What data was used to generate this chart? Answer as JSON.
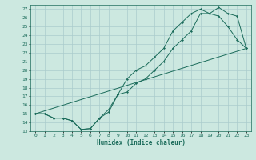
{
  "xlabel": "Humidex (Indice chaleur)",
  "background_color": "#cce8e0",
  "grid_color": "#aacccc",
  "line_color": "#1a6b5a",
  "xlim": [
    -0.5,
    23.5
  ],
  "ylim": [
    13,
    27.5
  ],
  "xticks": [
    0,
    1,
    2,
    3,
    4,
    5,
    6,
    7,
    8,
    9,
    10,
    11,
    12,
    13,
    14,
    15,
    16,
    17,
    18,
    19,
    20,
    21,
    22,
    23
  ],
  "yticks": [
    13,
    14,
    15,
    16,
    17,
    18,
    19,
    20,
    21,
    22,
    23,
    24,
    25,
    26,
    27
  ],
  "line1_x": [
    0,
    1,
    2,
    3,
    4,
    5,
    6,
    7,
    8,
    9,
    10,
    11,
    12,
    13,
    14,
    15,
    16,
    17,
    18,
    19,
    20,
    21,
    22,
    23
  ],
  "line1_y": [
    15,
    15,
    14.5,
    14.5,
    14.2,
    13.2,
    13.3,
    14.5,
    15.2,
    17.2,
    17.5,
    18.5,
    19.0,
    20.0,
    21.0,
    22.5,
    23.5,
    24.5,
    26.5,
    26.5,
    27.2,
    26.5,
    26.2,
    22.5
  ],
  "line2_x": [
    0,
    1,
    2,
    3,
    4,
    5,
    6,
    7,
    8,
    9,
    10,
    11,
    12,
    13,
    14,
    15,
    16,
    17,
    18,
    19,
    20,
    21,
    22,
    23
  ],
  "line2_y": [
    15,
    15,
    14.5,
    14.5,
    14.2,
    13.2,
    13.3,
    14.5,
    15.5,
    17.2,
    19.0,
    20.0,
    20.5,
    21.5,
    22.5,
    24.5,
    25.5,
    26.5,
    27.0,
    26.5,
    26.2,
    25.0,
    23.5,
    22.5
  ],
  "line3_x": [
    0,
    23
  ],
  "line3_y": [
    15,
    22.5
  ]
}
